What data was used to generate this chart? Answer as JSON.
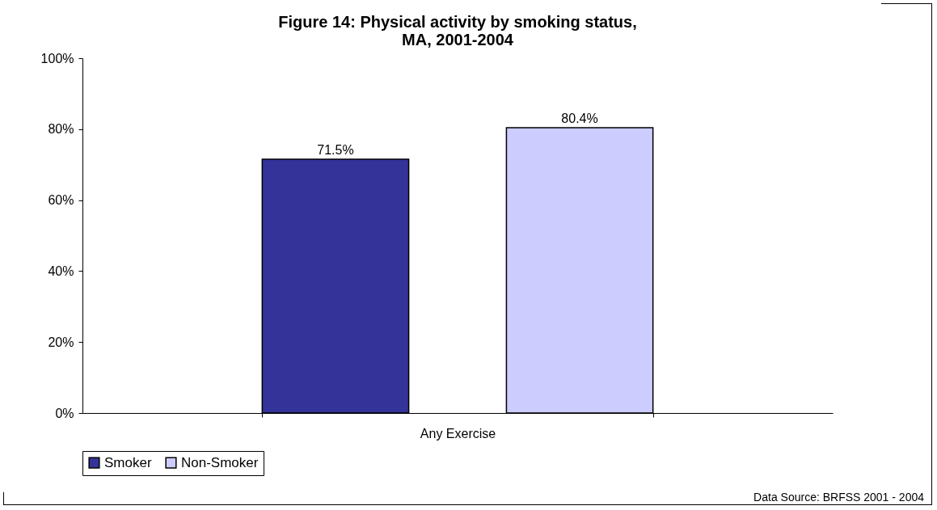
{
  "chart_data": {
    "type": "bar",
    "title": [
      "Figure 14: Physical activity by smoking status,",
      "MA, 2001-2004"
    ],
    "categories": [
      "Any Exercise"
    ],
    "series": [
      {
        "name": "Smoker",
        "color": "#333399",
        "values": [
          71.5
        ],
        "value_labels": [
          "71.5%"
        ]
      },
      {
        "name": "Non-Smoker",
        "color": "#ccccff",
        "values": [
          80.4
        ],
        "value_labels": [
          "80.4%"
        ]
      }
    ],
    "ylim": [
      0,
      100
    ],
    "yticks": [
      {
        "value": 0,
        "label": "0%"
      },
      {
        "value": 20,
        "label": "20%"
      },
      {
        "value": 40,
        "label": "40%"
      },
      {
        "value": 60,
        "label": "60%"
      },
      {
        "value": 80,
        "label": "80%"
      },
      {
        "value": 100,
        "label": "100%"
      }
    ],
    "grid": false,
    "legend": "bottom",
    "annotations": [
      "Data Source: BRFSS 2001 - 2004"
    ]
  }
}
